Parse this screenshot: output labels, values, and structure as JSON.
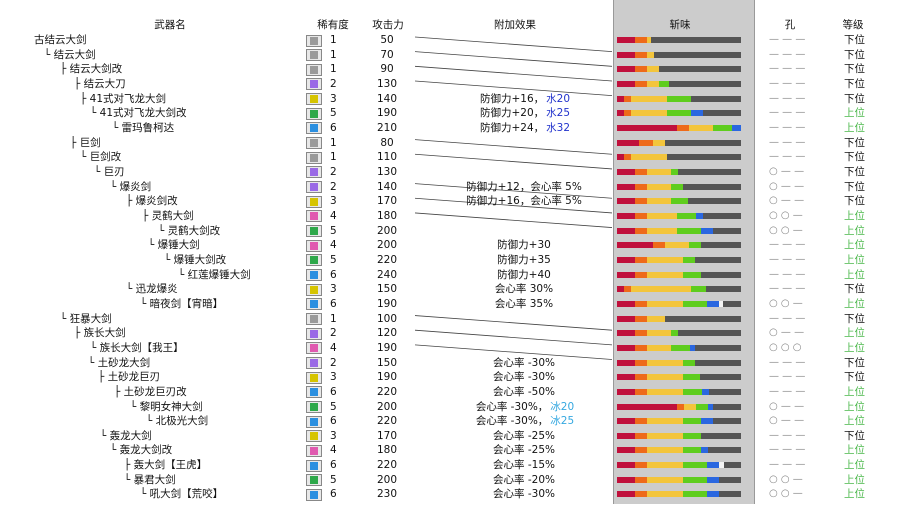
{
  "headers": {
    "weapon": "武器名",
    "rarity": "稀有度",
    "attack": "攻击力",
    "effect": "附加效果",
    "sharpness": "斩味",
    "slots": "孔",
    "grade": "等级"
  },
  "colors": {
    "red": "#c0103c",
    "orange": "#ee6a1a",
    "yellow": "#f3c53c",
    "green": "#5fcd1e",
    "blue": "#2a67e0",
    "white": "#f4f4f4",
    "empty": "#555555",
    "grade_low": "#111111",
    "grade_high": "#4cb84c",
    "rarity": {
      "1": "#9a9a9a",
      "2": "#9a6ae6",
      "3": "#d6c400",
      "4": "#e05ab0",
      "5": "#2ea84a",
      "6": "#2b8fe0"
    }
  },
  "rows": [
    {
      "name": "古结云大剑",
      "rarity": "1",
      "attack": "50",
      "effect": "",
      "effect_sub": "",
      "slots": "— — —",
      "grade": "下位",
      "grade_type": "low",
      "sharp": [
        15,
        10,
        3,
        0,
        0,
        0
      ]
    },
    {
      "name": "└ 结云大剑",
      "rarity": "1",
      "attack": "70",
      "effect": "",
      "effect_sub": "",
      "slots": "— — —",
      "grade": "下位",
      "grade_type": "low",
      "sharp": [
        15,
        10,
        6,
        0,
        0,
        0
      ]
    },
    {
      "name": "├ 结云大剑改",
      "rarity": "1",
      "attack": "90",
      "effect": "",
      "effect_sub": "",
      "slots": "— — —",
      "grade": "下位",
      "grade_type": "low",
      "sharp": [
        15,
        10,
        10,
        0,
        0,
        0
      ]
    },
    {
      "name": "├ 结云大刀",
      "rarity": "2",
      "attack": "130",
      "effect": "",
      "effect_sub": "",
      "slots": "— — —",
      "grade": "下位",
      "grade_type": "low",
      "sharp": [
        15,
        10,
        10,
        8,
        0,
        0
      ]
    },
    {
      "name": "├ 41式对飞龙大剑",
      "rarity": "3",
      "attack": "140",
      "effect": "防御力+16，",
      "effect_sub": "水20",
      "slots": "— — —",
      "grade": "下位",
      "grade_type": "low",
      "sharp": [
        6,
        6,
        30,
        20,
        0,
        0
      ]
    },
    {
      "name": "└ 41式对飞龙大剑改",
      "rarity": "5",
      "attack": "190",
      "effect": "防御力+20，",
      "effect_sub": "水25",
      "slots": "— — —",
      "grade": "上位",
      "grade_type": "high",
      "sharp": [
        6,
        6,
        30,
        20,
        10,
        0
      ]
    },
    {
      "name": "└ 雷玛鲁柯达",
      "rarity": "6",
      "attack": "210",
      "effect": "防御力+24，",
      "effect_sub": "水32",
      "slots": "— — —",
      "grade": "上位",
      "grade_type": "high",
      "sharp": [
        50,
        10,
        20,
        16,
        10,
        0
      ]
    },
    {
      "name": "├ 巨剑",
      "rarity": "1",
      "attack": "80",
      "effect": "",
      "effect_sub": "",
      "slots": "— — —",
      "grade": "下位",
      "grade_type": "low",
      "sharp": [
        18,
        12,
        10,
        0,
        0,
        0
      ]
    },
    {
      "name": "└ 巨剑改",
      "rarity": "1",
      "attack": "110",
      "effect": "",
      "effect_sub": "",
      "slots": "— — —",
      "grade": "下位",
      "grade_type": "low",
      "sharp": [
        6,
        6,
        30,
        0,
        0,
        0
      ]
    },
    {
      "name": "└ 巨刃",
      "rarity": "2",
      "attack": "130",
      "effect": "",
      "effect_sub": "",
      "slots": "○ — —",
      "grade": "下位",
      "grade_type": "low",
      "sharp": [
        15,
        10,
        20,
        6,
        0,
        0
      ]
    },
    {
      "name": "└ 爆炎剑",
      "rarity": "2",
      "attack": "140",
      "effect": "防御力+12，会心率 5%",
      "effect_sub": "",
      "slots": "○ — —",
      "grade": "下位",
      "grade_type": "low",
      "sharp": [
        15,
        10,
        20,
        10,
        0,
        0
      ]
    },
    {
      "name": "├ 爆炎剑改",
      "rarity": "3",
      "attack": "170",
      "effect": "防御力+16，会心率 5%",
      "effect_sub": "",
      "slots": "○ — —",
      "grade": "下位",
      "grade_type": "low",
      "sharp": [
        15,
        10,
        20,
        14,
        0,
        0
      ]
    },
    {
      "name": "├ 灵鹤大剑",
      "rarity": "4",
      "attack": "180",
      "effect": "",
      "effect_sub": "",
      "slots": "○ ○ —",
      "grade": "上位",
      "grade_type": "high",
      "sharp": [
        15,
        10,
        25,
        16,
        6,
        0
      ]
    },
    {
      "name": "└ 灵鹤大剑改",
      "rarity": "5",
      "attack": "200",
      "effect": "",
      "effect_sub": "",
      "slots": "○ ○ —",
      "grade": "上位",
      "grade_type": "high",
      "sharp": [
        15,
        10,
        25,
        20,
        10,
        0
      ]
    },
    {
      "name": "└ 爆锤大剑",
      "rarity": "4",
      "attack": "200",
      "effect": "防御力+30",
      "effect_sub": "",
      "slots": "— — —",
      "grade": "上位",
      "grade_type": "high",
      "sharp": [
        30,
        10,
        20,
        10,
        0,
        0
      ]
    },
    {
      "name": "└ 爆锤大剑改",
      "rarity": "5",
      "attack": "220",
      "effect": "防御力+35",
      "effect_sub": "",
      "slots": "— — —",
      "grade": "上位",
      "grade_type": "high",
      "sharp": [
        15,
        10,
        30,
        10,
        0,
        0
      ]
    },
    {
      "name": "└ 红莲爆锤大剑",
      "rarity": "6",
      "attack": "240",
      "effect": "防御力+40",
      "effect_sub": "",
      "slots": "— — —",
      "grade": "上位",
      "grade_type": "high",
      "sharp": [
        15,
        10,
        30,
        15,
        0,
        0
      ]
    },
    {
      "name": "└ 迅龙爆炎",
      "rarity": "3",
      "attack": "150",
      "effect": "会心率 30%",
      "effect_sub": "",
      "slots": "— — —",
      "grade": "下位",
      "grade_type": "low",
      "sharp": [
        6,
        6,
        50,
        12,
        0,
        0
      ]
    },
    {
      "name": "└ 暗夜剑【宵暗】",
      "rarity": "6",
      "attack": "190",
      "effect": "会心率 35%",
      "effect_sub": "",
      "slots": "○ ○ —",
      "grade": "上位",
      "grade_type": "high",
      "sharp": [
        15,
        10,
        30,
        20,
        10,
        3
      ]
    },
    {
      "name": "└ 狂暴大剑",
      "rarity": "1",
      "attack": "100",
      "effect": "",
      "effect_sub": "",
      "slots": "— — —",
      "grade": "下位",
      "grade_type": "low",
      "sharp": [
        15,
        10,
        15,
        0,
        0,
        0
      ]
    },
    {
      "name": "├ 族长大剑",
      "rarity": "2",
      "attack": "120",
      "effect": "",
      "effect_sub": "",
      "slots": "○ — —",
      "grade": "上位",
      "grade_type": "high",
      "sharp": [
        15,
        10,
        20,
        6,
        0,
        0
      ]
    },
    {
      "name": "└ 族长大剑【我王】",
      "rarity": "4",
      "attack": "190",
      "effect": "",
      "effect_sub": "",
      "slots": "○ ○ ○",
      "grade": "上位",
      "grade_type": "high",
      "sharp": [
        15,
        10,
        20,
        16,
        4,
        0
      ]
    },
    {
      "name": "└ 土砂龙大剑",
      "rarity": "2",
      "attack": "150",
      "effect": "会心率 -30%",
      "effect_sub": "",
      "slots": "— — —",
      "grade": "下位",
      "grade_type": "low",
      "sharp": [
        15,
        10,
        30,
        10,
        0,
        0
      ]
    },
    {
      "name": "├ 土砂龙巨刃",
      "rarity": "3",
      "attack": "190",
      "effect": "会心率 -30%",
      "effect_sub": "",
      "slots": "— — —",
      "grade": "下位",
      "grade_type": "low",
      "sharp": [
        15,
        10,
        30,
        14,
        0,
        0
      ]
    },
    {
      "name": "├ 土砂龙巨刃改",
      "rarity": "6",
      "attack": "220",
      "effect": "会心率 -50%",
      "effect_sub": "",
      "slots": "— — —",
      "grade": "上位",
      "grade_type": "high",
      "sharp": [
        15,
        10,
        30,
        16,
        6,
        0
      ]
    },
    {
      "name": "└ 黎明女神大剑",
      "rarity": "5",
      "attack": "200",
      "effect": "会心率 -30%，",
      "effect_sub": "冰20",
      "slots": "○ — —",
      "grade": "上位",
      "grade_type": "high",
      "sharp": [
        50,
        6,
        10,
        10,
        4,
        0
      ]
    },
    {
      "name": "└ 北极光大剑",
      "rarity": "6",
      "attack": "220",
      "effect": "会心率 -30%，",
      "effect_sub": "冰25",
      "slots": "○ — —",
      "grade": "上位",
      "grade_type": "high",
      "sharp": [
        15,
        10,
        30,
        15,
        10,
        0
      ]
    },
    {
      "name": "└ 轰龙大剑",
      "rarity": "3",
      "attack": "170",
      "effect": "会心率 -25%",
      "effect_sub": "",
      "slots": "— — —",
      "grade": "下位",
      "grade_type": "low",
      "sharp": [
        15,
        10,
        30,
        15,
        0,
        0
      ]
    },
    {
      "name": "└ 轰龙大剑改",
      "rarity": "4",
      "attack": "180",
      "effect": "会心率 -25%",
      "effect_sub": "",
      "slots": "— — —",
      "grade": "上位",
      "grade_type": "high",
      "sharp": [
        15,
        10,
        30,
        15,
        6,
        0
      ]
    },
    {
      "name": "├ 轰大剑【王虎】",
      "rarity": "6",
      "attack": "220",
      "effect": "会心率 -15%",
      "effect_sub": "",
      "slots": "— — —",
      "grade": "上位",
      "grade_type": "high",
      "sharp": [
        15,
        10,
        30,
        20,
        10,
        4
      ]
    },
    {
      "name": "└ 暴君大剑",
      "rarity": "5",
      "attack": "200",
      "effect": "会心率 -20%",
      "effect_sub": "",
      "slots": "○ ○ —",
      "grade": "上位",
      "grade_type": "high",
      "sharp": [
        15,
        10,
        30,
        20,
        10,
        0
      ]
    },
    {
      "name": "└ 吼大剑【荒咬】",
      "rarity": "6",
      "attack": "230",
      "effect": "会心率 -30%",
      "effect_sub": "",
      "slots": "○ ○ —",
      "grade": "上位",
      "grade_type": "high",
      "sharp": [
        15,
        10,
        30,
        20,
        10,
        0
      ]
    }
  ]
}
